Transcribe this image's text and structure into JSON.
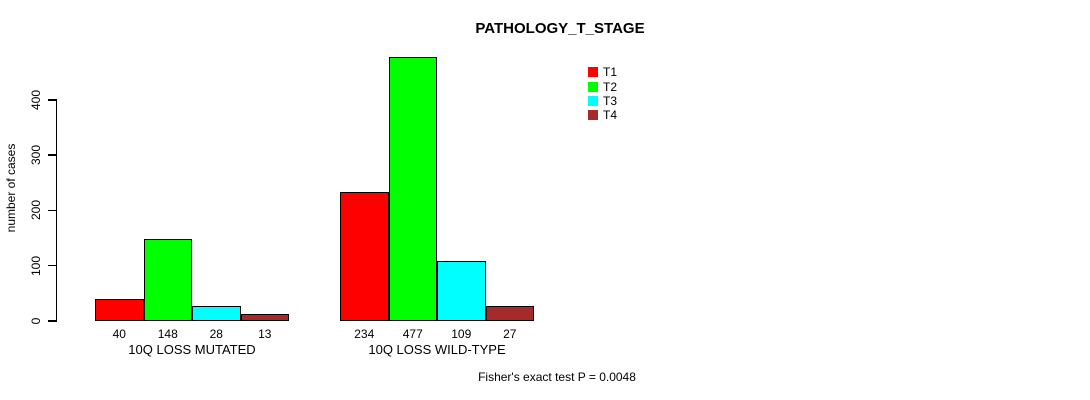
{
  "chart_data": {
    "type": "bar",
    "title": "PATHOLOGY_T_STAGE",
    "ylabel": "number of cases",
    "xlabel": "",
    "categories": [
      "10Q LOSS MUTATED",
      "10Q LOSS WILD-TYPE"
    ],
    "series": [
      {
        "name": "T1",
        "color": "#ff0000",
        "values": [
          40,
          234
        ]
      },
      {
        "name": "T2",
        "color": "#00ff00",
        "values": [
          148,
          477
        ]
      },
      {
        "name": "T3",
        "color": "#00ffff",
        "values": [
          28,
          109
        ]
      },
      {
        "name": "T4",
        "color": "#a52a2a",
        "values": [
          13,
          27
        ]
      }
    ],
    "yticks": [
      0,
      100,
      200,
      300,
      400
    ],
    "ylim": [
      0,
      480
    ],
    "grid": false,
    "legend_position": "top-right",
    "bar_value_labels": true,
    "annotation": "Fisher's exact test P = 0.0048"
  }
}
